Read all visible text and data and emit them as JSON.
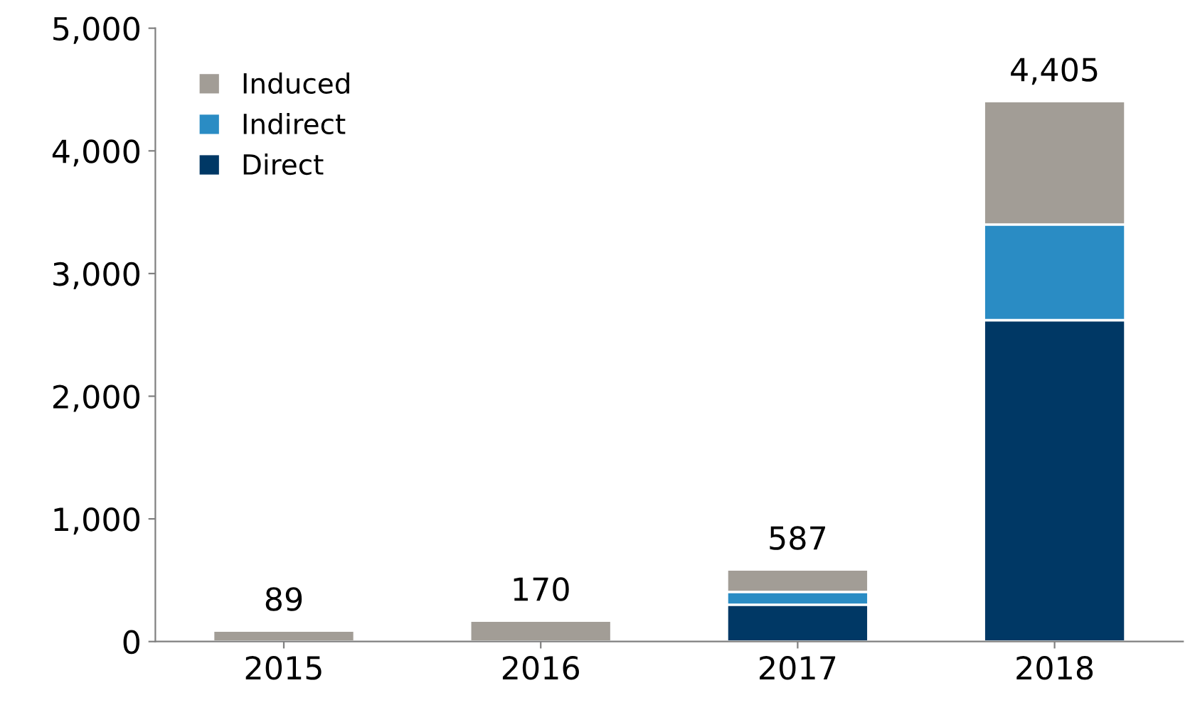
{
  "chart_data": {
    "type": "bar",
    "stacked": true,
    "categories": [
      "2015",
      "2016",
      "2017",
      "2018"
    ],
    "series": [
      {
        "name": "Direct",
        "color": "#003865",
        "values": [
          0,
          0,
          300,
          2620
        ]
      },
      {
        "name": "Indirect",
        "color": "#2a8cc4",
        "values": [
          0,
          0,
          105,
          780
        ]
      },
      {
        "name": "Induced",
        "color": "#a29d96",
        "values": [
          89,
          170,
          182,
          1005
        ]
      }
    ],
    "totals": [
      "89",
      "170",
      "587",
      "4,405"
    ],
    "ylim": [
      0,
      5000
    ],
    "yticks": [
      {
        "value": 0,
        "label": "0"
      },
      {
        "value": 1000,
        "label": "1,000"
      },
      {
        "value": 2000,
        "label": "2,000"
      },
      {
        "value": 3000,
        "label": "3,000"
      },
      {
        "value": 4000,
        "label": "4,000"
      },
      {
        "value": 5000,
        "label": "5,000"
      }
    ],
    "grid": false,
    "legend": "top left"
  }
}
